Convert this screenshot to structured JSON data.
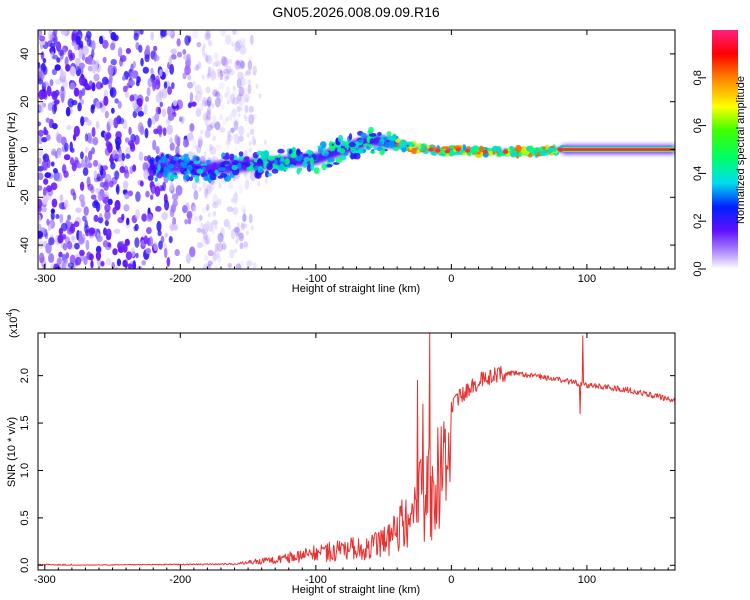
{
  "title": "GN05.2026.008.09.09.R16",
  "chart_data": [
    {
      "type": "heatmap",
      "name": "spectrogram",
      "xlabel": "Height of straight line (km)",
      "ylabel": "Frequency (Hz)",
      "xlim": [
        -305,
        165
      ],
      "ylim": [
        -50,
        50
      ],
      "xticks": [
        -300,
        -200,
        -100,
        0,
        100
      ],
      "yticks": [
        -40,
        -20,
        0,
        20,
        40
      ],
      "ridge_x": [
        -225,
        -200,
        -180,
        -160,
        -140,
        -120,
        -100,
        -80,
        -60,
        -45,
        -30,
        -15,
        -5,
        5,
        20,
        40,
        60,
        80,
        100,
        130,
        165
      ],
      "ridge_freq": [
        -8,
        -7,
        -8,
        -7,
        -6,
        -5,
        -4,
        0,
        4,
        3,
        1,
        0,
        -1,
        0,
        -1,
        -1,
        -1,
        0,
        0,
        0,
        0
      ],
      "tone_start_x": 82,
      "tone_freq": 0,
      "colorbar": {
        "label": "Normalized spectral amplitude",
        "ticks": [
          "0.0",
          "0.2",
          "0.4",
          "0.6",
          "0.8"
        ],
        "tick_values": [
          0.0,
          0.2,
          0.4,
          0.6,
          0.8
        ],
        "range": [
          0,
          1
        ]
      }
    },
    {
      "type": "line",
      "name": "snr",
      "xlabel": "Height of straight line (km)",
      "ylabel": "SNR (10 * v/v)",
      "exponent_label": "(x10",
      "exponent_power": "4",
      "xlim": [
        -305,
        165
      ],
      "ylim": [
        -0.05,
        2.45
      ],
      "xticks": [
        -300,
        -200,
        -100,
        0,
        100
      ],
      "yticks": [
        "0.0",
        "0.5",
        "1.0",
        "1.5",
        "2.0"
      ],
      "ytick_values": [
        0.0,
        0.5,
        1.0,
        1.5,
        2.0
      ],
      "series_color": "#e83232",
      "envelope": {
        "x": [
          -305,
          -160,
          -150,
          -130,
          -110,
          -90,
          -70,
          -55,
          -45,
          -35,
          -25,
          -18,
          -12,
          -5,
          5,
          15,
          25,
          35,
          50,
          70,
          90,
          100,
          130,
          165
        ],
        "y": [
          0.0,
          0.02,
          0.05,
          0.1,
          0.18,
          0.25,
          0.3,
          0.35,
          0.45,
          0.7,
          1.0,
          1.25,
          1.45,
          1.6,
          1.75,
          1.9,
          1.97,
          2.02,
          2.02,
          1.98,
          1.93,
          1.9,
          1.85,
          1.74
        ]
      },
      "spikes": [
        {
          "x": -16,
          "y": 2.45
        },
        {
          "x": -25,
          "y": 1.95
        },
        {
          "x": -21,
          "y": 1.7
        },
        {
          "x": -10,
          "y": 1.45
        },
        {
          "x": 97,
          "y": 2.42
        },
        {
          "x": 95,
          "y": 1.6
        }
      ]
    }
  ],
  "palette": {
    "line": "#e83232",
    "axis": "#000000",
    "background": "#ffffff"
  }
}
